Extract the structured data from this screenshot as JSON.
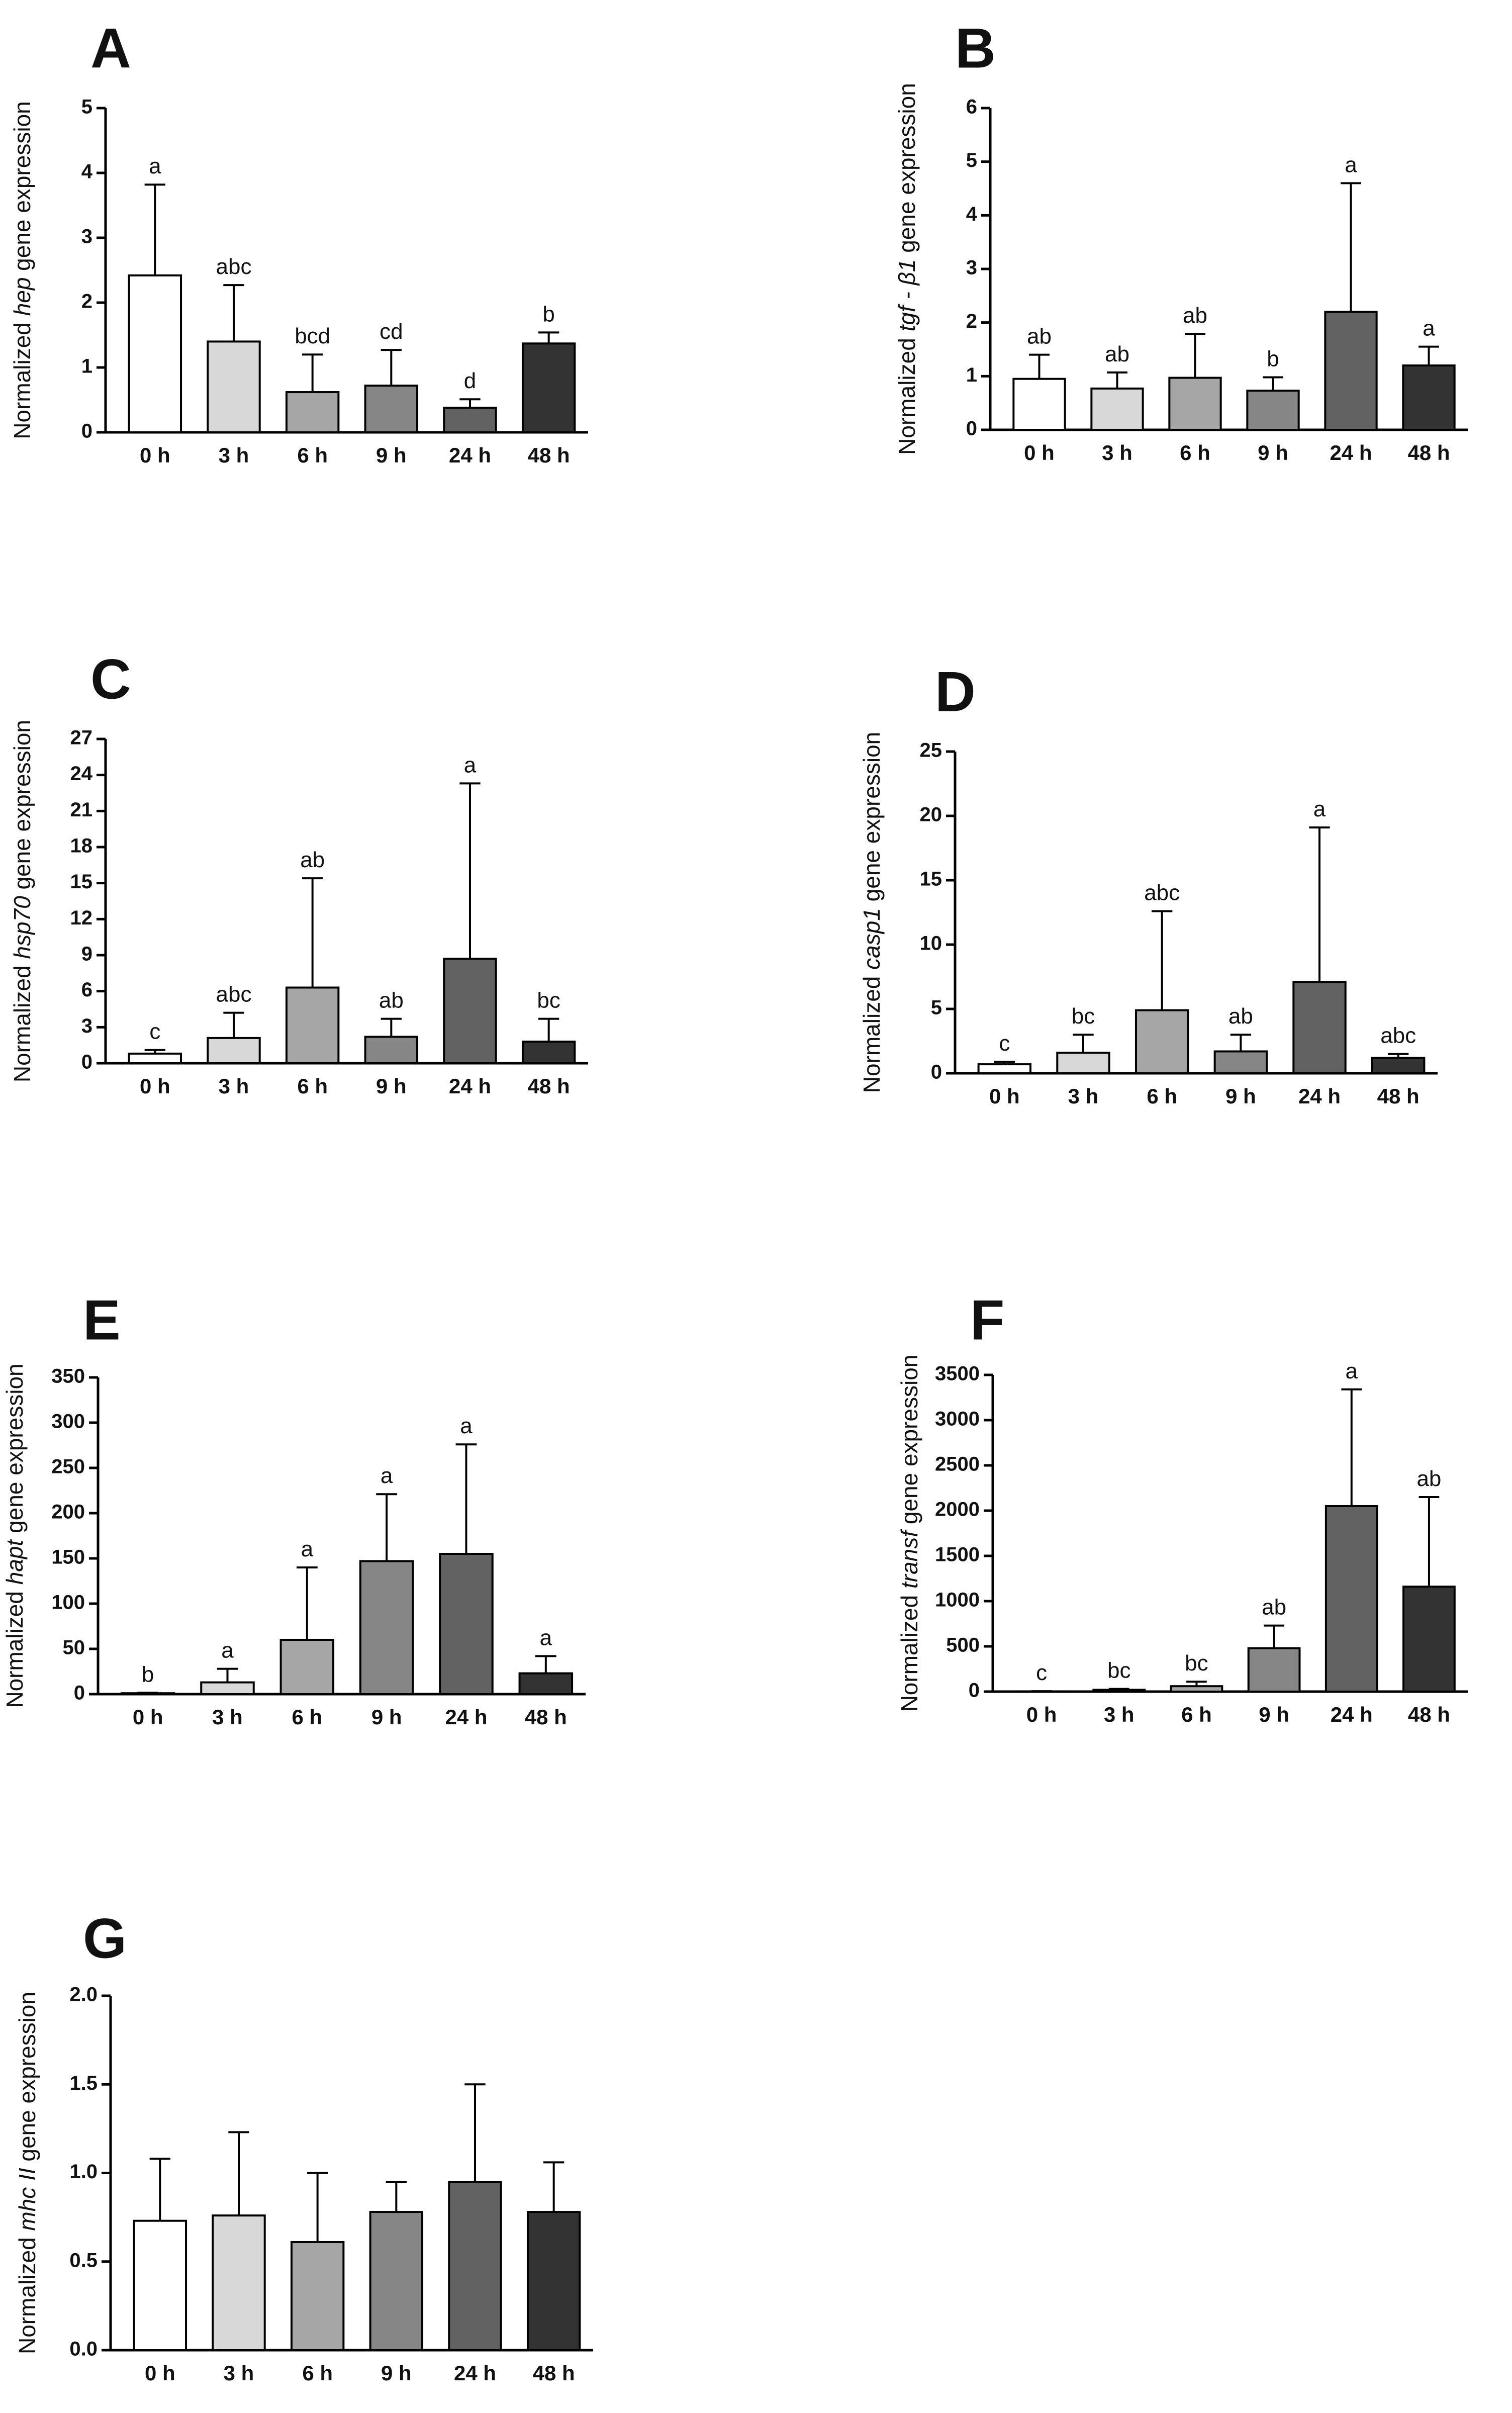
{
  "colors": {
    "bars": [
      "#ffffff",
      "#d8d8d8",
      "#a6a6a6",
      "#868686",
      "#626262",
      "#333333"
    ],
    "stroke": "#000000"
  },
  "chart_data": [
    {
      "letter": "A",
      "type": "bar",
      "gene": "hep",
      "ylabel_pre": "Normalized ",
      "ylabel_gene": "hep",
      "ylabel_post": " gene expression",
      "categories": [
        "0 h",
        "3 h",
        "6 h",
        "9 h",
        "24 h",
        "48 h"
      ],
      "values": [
        2.42,
        1.4,
        0.62,
        0.72,
        0.38,
        1.37
      ],
      "errors": [
        1.4,
        0.87,
        0.58,
        0.55,
        0.13,
        0.17
      ],
      "sig": [
        "a",
        "abc",
        "bcd",
        "cd",
        "d",
        "b"
      ],
      "ylim": [
        0,
        5
      ],
      "yticks": [
        0,
        1,
        2,
        3,
        4,
        5
      ],
      "ytick_labels": [
        "0",
        "1",
        "2",
        "3",
        "4",
        "5"
      ]
    },
    {
      "letter": "B",
      "type": "bar",
      "gene": "tgf-β1",
      "ylabel_pre": "Normalized ",
      "ylabel_gene": "tgf - β1",
      "ylabel_post": " gene expression",
      "categories": [
        "0 h",
        "3 h",
        "6 h",
        "9 h",
        "24 h",
        "48 h"
      ],
      "values": [
        0.95,
        0.77,
        0.97,
        0.73,
        2.2,
        1.2
      ],
      "errors": [
        0.45,
        0.3,
        0.82,
        0.25,
        2.4,
        0.35
      ],
      "sig": [
        "ab",
        "ab",
        "ab",
        "b",
        "a",
        "a"
      ],
      "ylim": [
        0,
        6
      ],
      "yticks": [
        0,
        1,
        2,
        3,
        4,
        5,
        6
      ],
      "ytick_labels": [
        "0",
        "1",
        "2",
        "3",
        "4",
        "5",
        "6"
      ]
    },
    {
      "letter": "C",
      "type": "bar",
      "gene": "hsp70",
      "ylabel_pre": "Normalized ",
      "ylabel_gene": "hsp70",
      "ylabel_post": " gene expression",
      "categories": [
        "0 h",
        "3 h",
        "6 h",
        "9 h",
        "24 h",
        "48 h"
      ],
      "values": [
        0.8,
        2.1,
        6.3,
        2.2,
        8.7,
        1.8
      ],
      "errors": [
        0.3,
        2.1,
        9.1,
        1.5,
        14.6,
        1.9
      ],
      "sig": [
        "c",
        "abc",
        "ab",
        "ab",
        "a",
        "bc"
      ],
      "ylim": [
        0,
        27
      ],
      "yticks": [
        0,
        3,
        6,
        9,
        12,
        15,
        18,
        21,
        24,
        27
      ],
      "ytick_labels": [
        "0",
        "3",
        "6",
        "9",
        "12",
        "15",
        "18",
        "21",
        "24",
        "27"
      ]
    },
    {
      "letter": "D",
      "type": "bar",
      "gene": "casp1",
      "ylabel_pre": "Normalized ",
      "ylabel_gene": "casp1",
      "ylabel_post": " gene expression",
      "categories": [
        "0 h",
        "3 h",
        "6 h",
        "9 h",
        "24 h",
        "48 h"
      ],
      "values": [
        0.7,
        1.6,
        4.9,
        1.7,
        7.1,
        1.2
      ],
      "errors": [
        0.2,
        1.4,
        7.7,
        1.3,
        12.0,
        0.3
      ],
      "sig": [
        "c",
        "bc",
        "abc",
        "ab",
        "a",
        "abc"
      ],
      "ylim": [
        0,
        25
      ],
      "yticks": [
        0,
        5,
        10,
        15,
        20,
        25
      ],
      "ytick_labels": [
        "0",
        "5",
        "10",
        "15",
        "20",
        "25"
      ]
    },
    {
      "letter": "E",
      "type": "bar",
      "gene": "hapt",
      "ylabel_pre": "Normalized ",
      "ylabel_gene": "hapt",
      "ylabel_post": " gene expression",
      "categories": [
        "0 h",
        "3 h",
        "6 h",
        "9 h",
        "24 h",
        "48 h"
      ],
      "values": [
        1,
        13,
        60,
        147,
        155,
        23
      ],
      "errors": [
        0.5,
        15,
        80,
        74,
        121,
        19
      ],
      "sig": [
        "b",
        "a",
        "a",
        "a",
        "a",
        "a"
      ],
      "ylim": [
        0,
        350
      ],
      "yticks": [
        0,
        50,
        100,
        150,
        200,
        250,
        300,
        350
      ],
      "ytick_labels": [
        "0",
        "50",
        "100",
        "150",
        "200",
        "250",
        "300",
        "350"
      ]
    },
    {
      "letter": "F",
      "type": "bar",
      "gene": "transf",
      "ylabel_pre": "Normalized ",
      "ylabel_gene": "transf",
      "ylabel_post": " gene expression",
      "categories": [
        "0 h",
        "3 h",
        "6 h",
        "9 h",
        "24 h",
        "48 h"
      ],
      "values": [
        3,
        20,
        60,
        480,
        2050,
        1160
      ],
      "errors": [
        2,
        10,
        50,
        250,
        1290,
        990
      ],
      "sig": [
        "c",
        "bc",
        "bc",
        "ab",
        "a",
        "ab"
      ],
      "ylim": [
        0,
        3500
      ],
      "yticks": [
        0,
        500,
        1000,
        1500,
        2000,
        2500,
        3000,
        3500
      ],
      "ytick_labels": [
        "0",
        "500",
        "1000",
        "1500",
        "2000",
        "2500",
        "3000",
        "3500"
      ]
    },
    {
      "letter": "G",
      "type": "bar",
      "gene": "mhc II",
      "ylabel_pre": "Normalized ",
      "ylabel_gene": "mhc II",
      "ylabel_post": " gene expression",
      "categories": [
        "0 h",
        "3 h",
        "6 h",
        "9 h",
        "24 h",
        "48 h"
      ],
      "values": [
        0.73,
        0.76,
        0.61,
        0.78,
        0.95,
        0.78
      ],
      "errors": [
        0.35,
        0.47,
        0.39,
        0.17,
        0.55,
        0.28
      ],
      "sig": [
        "",
        "",
        "",
        "",
        "",
        ""
      ],
      "ylim": [
        0,
        2
      ],
      "yticks": [
        0,
        0.5,
        1,
        1.5,
        2
      ],
      "ytick_labels": [
        "0.0",
        "0.5",
        "1.0",
        "1.5",
        "2.0"
      ]
    }
  ]
}
